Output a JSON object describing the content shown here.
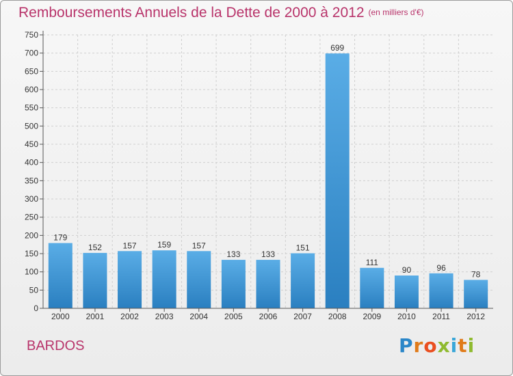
{
  "title": "Remboursements Annuels de la Dette de 2000 à 2012",
  "unit_note": "(en milliers d'€)",
  "commune": "BARDOS",
  "brand": {
    "name": "Proxiti"
  },
  "colors": {
    "title": "#b8336a",
    "bar_top": "#5aade6",
    "bar_bottom": "#2a7fc0",
    "grid": "#cfcfcf",
    "axis": "#555555"
  },
  "chart_data": {
    "type": "bar",
    "title": "Remboursements Annuels de la Dette de 2000 à 2012",
    "subtitle": "(en milliers d'€)",
    "categories": [
      "2000",
      "2001",
      "2002",
      "2003",
      "2004",
      "2005",
      "2006",
      "2007",
      "2008",
      "2009",
      "2010",
      "2011",
      "2012"
    ],
    "values": [
      179,
      152,
      157,
      159,
      157,
      133,
      133,
      151,
      699,
      111,
      90,
      96,
      78
    ],
    "ylim": [
      0,
      750
    ],
    "yticks": [
      0,
      50,
      100,
      150,
      200,
      250,
      300,
      350,
      400,
      450,
      500,
      550,
      600,
      650,
      700,
      750
    ],
    "grid": true,
    "data_labels": true
  }
}
